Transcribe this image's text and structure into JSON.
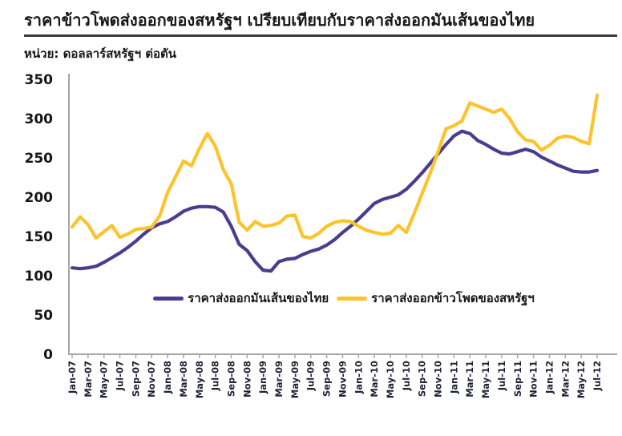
{
  "page": {
    "title": "ราคาข้าวโพดส่งออกของสหรัฐฯ เปรียบเทียบกับราคาส่งออกมันเส้นของไทย",
    "unit_label": "หน่วย: ดอลลาร์สหรัฐฯ ต่อตัน"
  },
  "colors": {
    "thai_cassava_line": "#4a3d8f",
    "us_corn_line": "#fdc32b",
    "axis": "#a6a6a6",
    "text": "#161616",
    "x_label_text": "#1c2333",
    "title_rule": "#3b3b3b"
  },
  "chart_data": {
    "type": "line",
    "title": "ราคาข้าวโพดส่งออกของสหรัฐฯ เปรียบเทียบกับราคาส่งออกมันเส้นของไทย",
    "ylabel": "ดอลลาร์สหรัฐฯ ต่อตัน",
    "xlabel": "",
    "ylim": [
      0,
      350
    ],
    "y_ticks": [
      0,
      50,
      100,
      150,
      200,
      250,
      300,
      350
    ],
    "grid": false,
    "legend_position": "inside-bottom",
    "x_tick_every": 2,
    "x": [
      "Jan-07",
      "Feb-07",
      "Mar-07",
      "Apr-07",
      "May-07",
      "Jun-07",
      "Jul-07",
      "Aug-07",
      "Sep-07",
      "Oct-07",
      "Nov-07",
      "Dec-07",
      "Jan-08",
      "Feb-08",
      "Mar-08",
      "Apr-08",
      "May-08",
      "Jun-08",
      "Jul-08",
      "Aug-08",
      "Sep-08",
      "Oct-08",
      "Nov-08",
      "Dec-08",
      "Jan-09",
      "Feb-09",
      "Mar-09",
      "Apr-09",
      "May-09",
      "Jun-09",
      "Jul-09",
      "Aug-09",
      "Sep-09",
      "Oct-09",
      "Nov-09",
      "Dec-09",
      "Jan-10",
      "Feb-10",
      "Mar-10",
      "Apr-10",
      "May-10",
      "Jun-10",
      "Jul-10",
      "Aug-10",
      "Sep-10",
      "Oct-10",
      "Nov-10",
      "Dec-10",
      "Jan-11",
      "Feb-11",
      "Mar-11",
      "Apr-11",
      "May-11",
      "Jun-11",
      "Jul-11",
      "Aug-11",
      "Sep-11",
      "Oct-11",
      "Nov-11",
      "Dec-11",
      "Jan-12",
      "Feb-12",
      "Mar-12",
      "Apr-12",
      "May-12",
      "Jun-12",
      "Jul-12"
    ],
    "series": [
      {
        "name": "ราคาส่งออกมันเส้นของไทย",
        "color": "#4a3d8f",
        "values": [
          110,
          109,
          110,
          112,
          117,
          123,
          129,
          136,
          144,
          153,
          161,
          166,
          169,
          175,
          182,
          186,
          188,
          188,
          187,
          181,
          163,
          140,
          132,
          118,
          107,
          106,
          118,
          121,
          122,
          127,
          131,
          134,
          139,
          146,
          155,
          163,
          172,
          182,
          192,
          197,
          200,
          203,
          210,
          220,
          231,
          243,
          255,
          267,
          278,
          284,
          281,
          272,
          267,
          261,
          256,
          255,
          258,
          261,
          258,
          251,
          246,
          241,
          237,
          233,
          232,
          232,
          234
        ]
      },
      {
        "name": "ราคาส่งออกข้าวโพดของสหรัฐฯ",
        "color": "#fdc32b",
        "values": [
          162,
          175,
          165,
          148,
          156,
          164,
          149,
          153,
          159,
          160,
          162,
          176,
          206,
          226,
          246,
          240,
          262,
          281,
          265,
          235,
          217,
          168,
          158,
          169,
          163,
          164,
          167,
          176,
          177,
          150,
          148,
          154,
          163,
          168,
          170,
          169,
          163,
          158,
          155,
          153,
          154,
          164,
          155,
          179,
          205,
          230,
          258,
          287,
          291,
          297,
          320,
          316,
          312,
          308,
          312,
          300,
          283,
          273,
          271,
          260,
          266,
          275,
          278,
          276,
          271,
          268,
          330
        ]
      }
    ]
  }
}
